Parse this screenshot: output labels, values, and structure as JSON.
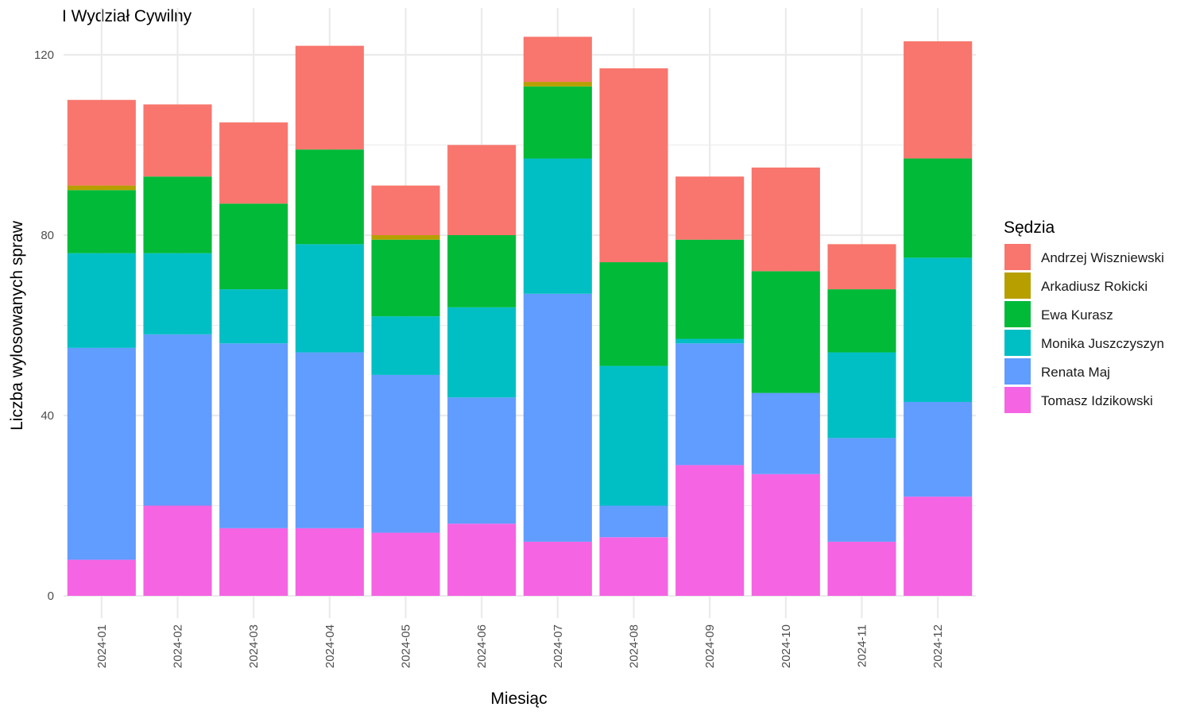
{
  "chart_data": {
    "type": "bar",
    "stacked": true,
    "title": "I Wydział Cywilny",
    "xlabel": "Miesiąc",
    "ylabel": "Liczba wylosowanych spraw",
    "ylim": [
      0,
      130
    ],
    "yticks": [
      0,
      40,
      80,
      120
    ],
    "grid": true,
    "legend_title": "Sędzia",
    "legend_position": "right",
    "categories": [
      "2024-01",
      "2024-02",
      "2024-03",
      "2024-04",
      "2024-05",
      "2024-06",
      "2024-07",
      "2024-08",
      "2024-09",
      "2024-10",
      "2024-11",
      "2024-12"
    ],
    "series": [
      {
        "name": "Tomasz Idzikowski",
        "color": "#F564E3",
        "values": [
          8,
          20,
          15,
          15,
          14,
          16,
          12,
          13,
          29,
          27,
          12,
          22
        ]
      },
      {
        "name": "Renata Maj",
        "color": "#619CFF",
        "values": [
          47,
          38,
          41,
          39,
          35,
          28,
          55,
          7,
          27,
          18,
          23,
          21
        ]
      },
      {
        "name": "Monika Juszczyszyn",
        "color": "#00BFC4",
        "values": [
          21,
          18,
          12,
          24,
          13,
          20,
          30,
          31,
          1,
          0,
          19,
          32
        ]
      },
      {
        "name": "Ewa Kurasz",
        "color": "#00BA38",
        "values": [
          14,
          17,
          19,
          21,
          17,
          16,
          16,
          23,
          22,
          27,
          14,
          22
        ]
      },
      {
        "name": "Arkadiusz Rokicki",
        "color": "#B79F00",
        "values": [
          1,
          0,
          0,
          0,
          1,
          0,
          1,
          0,
          0,
          0,
          0,
          0
        ]
      },
      {
        "name": "Andrzej Wiszniewski",
        "color": "#F8766D",
        "values": [
          19,
          16,
          18,
          23,
          11,
          20,
          10,
          43,
          14,
          23,
          10,
          26
        ]
      }
    ]
  }
}
